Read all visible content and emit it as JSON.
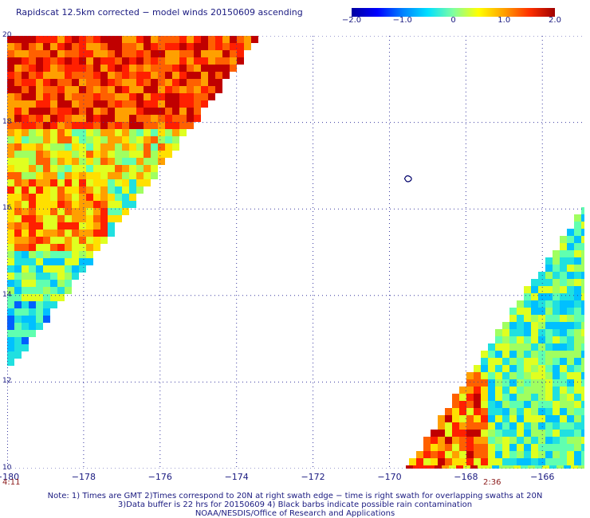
{
  "title": "Rapidscat 12.5km corrected − model winds 20150609 ascending",
  "colorbar": {
    "ticks": [
      "−2.0",
      "−1.0",
      "0",
      "1.0",
      "2.0"
    ],
    "tick_values": [
      -2.0,
      -1.0,
      0,
      1.0,
      2.0
    ],
    "colors": [
      "#0000a0",
      "#0000ff",
      "#0080ff",
      "#00e0ff",
      "#80ffa0",
      "#ffff00",
      "#ffa000",
      "#ff3000",
      "#a00000"
    ]
  },
  "axes": {
    "x_ticks": [
      "−180",
      "−178",
      "−176",
      "−174",
      "−172",
      "−170",
      "−168",
      "−166"
    ],
    "x_values": [
      -180,
      -178,
      -176,
      -174,
      -172,
      -170,
      -168,
      -166
    ],
    "y_ticks": [
      "20",
      "18",
      "16",
      "14",
      "12",
      "10"
    ],
    "y_values": [
      20,
      18,
      16,
      14,
      12,
      10
    ],
    "xlim": [
      -180,
      -164.9
    ],
    "ylim": [
      10,
      20
    ],
    "grid": "dotted"
  },
  "swaths": [
    {
      "time": "4:11",
      "description": "left swath"
    },
    {
      "time": "2:36",
      "description": "right swath"
    }
  ],
  "island_marker": {
    "lon": -169.5,
    "lat": 16.7
  },
  "notes": [
    "Note: 1) Times are GMT 2)Times correspond to 20N at right swath edge − time is right swath for overlapping swaths at 20N",
    "3)Data buffer is 22 hrs for 20150609 4) Black barbs indicate possible rain contamination",
    "NOAA/NESDIS/Office of Research and Applications"
  ]
}
